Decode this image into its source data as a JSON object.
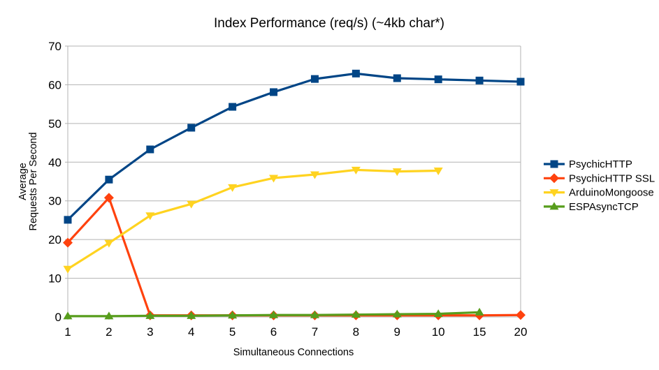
{
  "chart_data": {
    "type": "line",
    "title": "Index Performance (req/s) (~4kb char*)",
    "xlabel": "Simultaneous Connections",
    "ylabel": "Average Requests Per Second",
    "ylabel_lines": [
      "Average",
      "Requests Per Second"
    ],
    "ylim": [
      0,
      70
    ],
    "ytick_step": 10,
    "grid": "horizontal",
    "legend_position": "right",
    "background_color": "#ffffff",
    "axis_color": "#b3b3b3",
    "text_color": "#000000",
    "categories": [
      "1",
      "2",
      "3",
      "4",
      "5",
      "6",
      "7",
      "8",
      "9",
      "10",
      "15",
      "20"
    ],
    "series": [
      {
        "name": "PsychicHTTP",
        "color": "#004586",
        "marker": "square",
        "values": [
          25.1,
          35.5,
          43.3,
          48.9,
          54.3,
          58.1,
          61.5,
          62.9,
          61.7,
          61.4,
          61.1,
          60.8
        ]
      },
      {
        "name": "PsychicHTTP SSL",
        "color": "#FF420E",
        "marker": "diamond",
        "values": [
          19.2,
          30.8,
          0.4,
          0.4,
          0.4,
          0.4,
          0.4,
          0.4,
          0.4,
          0.4,
          0.4,
          0.5
        ]
      },
      {
        "name": "ArduinoMongoose",
        "color": "#FFD320",
        "marker": "triangle-down",
        "values": [
          12.4,
          19.1,
          26.2,
          29.2,
          33.5,
          35.9,
          36.8,
          38.0,
          37.6,
          37.8,
          null,
          null
        ]
      },
      {
        "name": "ESPAsyncTCP",
        "color": "#579D1C",
        "marker": "triangle-up",
        "values": [
          0.2,
          0.2,
          0.3,
          0.3,
          0.4,
          0.5,
          0.5,
          0.6,
          0.7,
          0.8,
          1.2,
          null
        ]
      }
    ]
  }
}
